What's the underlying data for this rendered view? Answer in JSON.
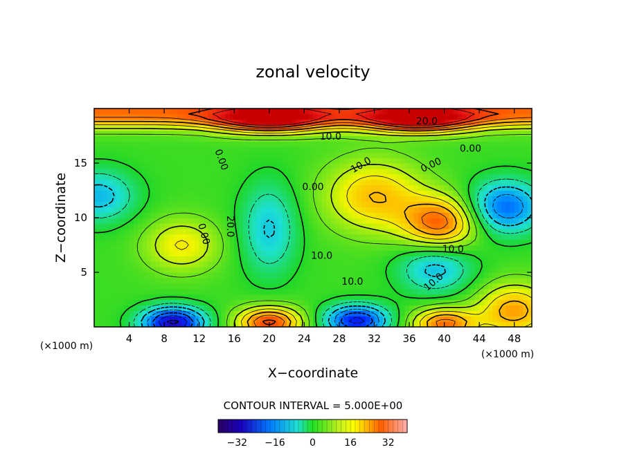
{
  "chart_data": {
    "type": "heatmap",
    "title": "zonal velocity",
    "xlabel": "X−coordinate",
    "ylabel": "Z−coordinate",
    "x_unit_label": "(×1000 m)",
    "y_unit_label": "(×1000 m)",
    "xlim": [
      0,
      50
    ],
    "ylim": [
      0,
      20
    ],
    "x_ticks": [
      "4",
      "8",
      "12",
      "16",
      "20",
      "24",
      "28",
      "32",
      "36",
      "40",
      "44",
      "48"
    ],
    "y_ticks": [
      "5",
      "10",
      "15"
    ],
    "contour_interval_text": "CONTOUR INTERVAL = 5.000E+00",
    "contour_labels": [
      "20.0",
      "10.0",
      "0.00",
      "0.00",
      "10.0",
      "0.00",
      "20.0",
      "10.0",
      "10.0",
      "0.00",
      "0.00",
      "10.0",
      "10.0"
    ],
    "colorbar": {
      "range": [
        -40,
        40
      ],
      "ticks": [
        "−32",
        "−16",
        "0",
        "16",
        "32"
      ],
      "colormap": "rainbow: purple/blue (negative) → green (0) → yellow/red (positive)"
    },
    "features": [
      {
        "kind": "max",
        "x": 10,
        "z": 7.5,
        "value": 17
      },
      {
        "kind": "max",
        "x": 32,
        "z": 12,
        "value": 22
      },
      {
        "kind": "max",
        "x": 39.5,
        "z": 9.5,
        "value": 30
      },
      {
        "kind": "max",
        "x": 20,
        "z": 19,
        "value": 32
      },
      {
        "kind": "max",
        "x": 37,
        "z": 19,
        "value": 32
      },
      {
        "kind": "max",
        "x": 20,
        "z": 0.4,
        "value": 35
      },
      {
        "kind": "max",
        "x": 40,
        "z": 0.3,
        "value": 30
      },
      {
        "kind": "max",
        "x": 48,
        "z": 1.5,
        "value": 25
      },
      {
        "kind": "min",
        "x": 20,
        "z": 9,
        "value": -12
      },
      {
        "kind": "min",
        "x": 0.5,
        "z": 12,
        "value": -14
      },
      {
        "kind": "min",
        "x": 47,
        "z": 11,
        "value": -22
      },
      {
        "kind": "min",
        "x": 9,
        "z": 0.4,
        "value": -35
      },
      {
        "kind": "min",
        "x": 30,
        "z": 0.6,
        "value": -30
      },
      {
        "kind": "min",
        "x": 39,
        "z": 5.5,
        "value": -14
      }
    ]
  }
}
